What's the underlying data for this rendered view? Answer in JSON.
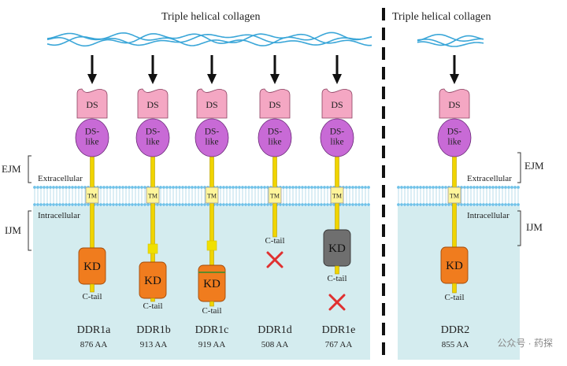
{
  "left_panel_title": "Triple helical collagen",
  "right_panel_title": "Triple helical collagen",
  "regions": {
    "ejm": "EJM",
    "ijm": "IJM",
    "extracellular": "Extracellular",
    "intracellular": "Intracellular"
  },
  "domains": {
    "ds": "DS",
    "ds_like": "DS-\nlike",
    "tm": "TM",
    "kd": "KD",
    "c_tail": "C-tail"
  },
  "isoforms": [
    {
      "name": "DDR1a",
      "aa": "876 AA"
    },
    {
      "name": "DDR1b",
      "aa": "913 AA"
    },
    {
      "name": "DDR1c",
      "aa": "919 AA"
    },
    {
      "name": "DDR1d",
      "aa": "508 AA"
    },
    {
      "name": "DDR1e",
      "aa": "767 AA"
    }
  ],
  "ddr2": {
    "name": "DDR2",
    "aa": "855 AA"
  },
  "watermark": "公众号 · 药探",
  "colors": {
    "cytoplasm": "#d4ecef",
    "collagen": "#3aa6d8",
    "ds": "#f4a7c3",
    "ds_like": "#c86ad6",
    "tm": "#fff59a",
    "stalk": "#f0d400",
    "kd": "#f07c1e",
    "kd_inactive": "#6f6f6f",
    "cross": "#e03030",
    "membrane_head": "#6fc1e8"
  }
}
